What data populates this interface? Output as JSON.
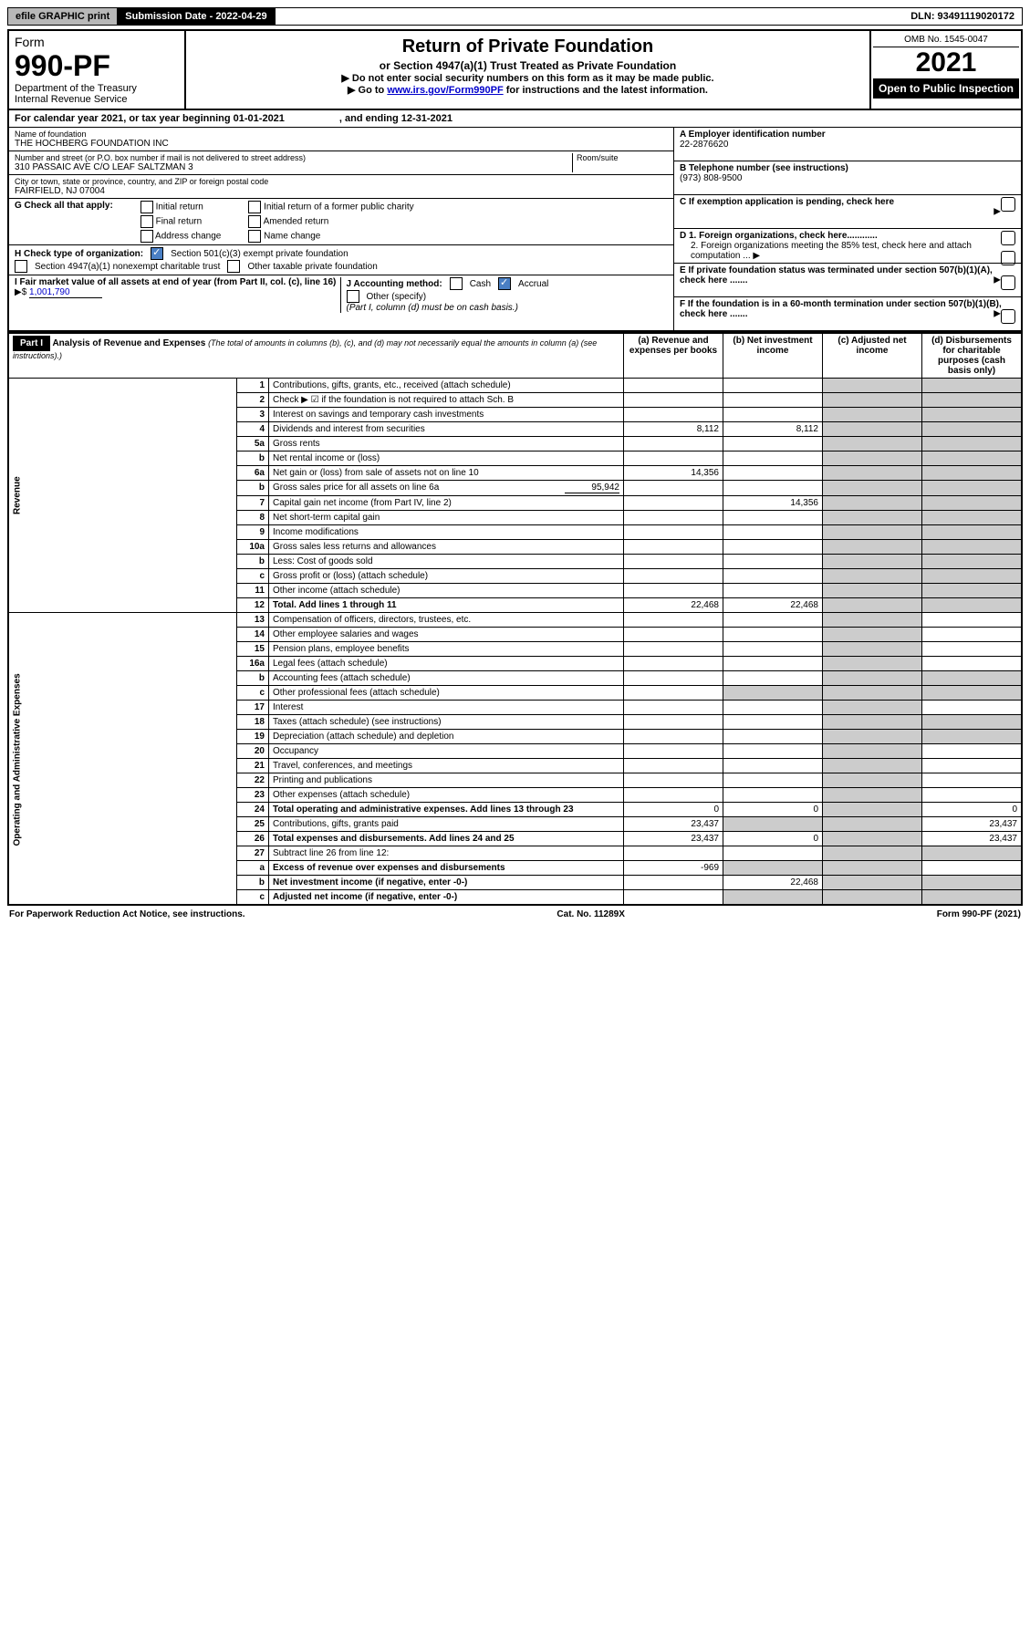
{
  "top": {
    "efile": "efile GRAPHIC print",
    "submission_label": "Submission Date - 2022-04-29",
    "dln": "DLN: 93491119020172"
  },
  "header": {
    "form_word": "Form",
    "form_no": "990-PF",
    "dept1": "Department of the Treasury",
    "dept2": "Internal Revenue Service",
    "title": "Return of Private Foundation",
    "subtitle": "or Section 4947(a)(1) Trust Treated as Private Foundation",
    "note1": "▶ Do not enter social security numbers on this form as it may be made public.",
    "note2_pre": "▶ Go to ",
    "note2_link": "www.irs.gov/Form990PF",
    "note2_post": " for instructions and the latest information.",
    "omb": "OMB No. 1545-0047",
    "year": "2021",
    "open": "Open to Public Inspection"
  },
  "cal": {
    "text1": "For calendar year 2021, or tax year beginning 01-01-2021",
    "text2": ", and ending 12-31-2021"
  },
  "foundation": {
    "name_label": "Name of foundation",
    "name": "THE HOCHBERG FOUNDATION INC",
    "addr_label": "Number and street (or P.O. box number if mail is not delivered to street address)",
    "addr": "310 PASSAIC AVE C/O LEAF SALTZMAN 3",
    "room_label": "Room/suite",
    "city_label": "City or town, state or province, country, and ZIP or foreign postal code",
    "city": "FAIRFIELD, NJ  07004"
  },
  "right": {
    "a_label": "A Employer identification number",
    "a_val": "22-2876620",
    "b_label": "B Telephone number (see instructions)",
    "b_val": "(973) 808-9500",
    "c_label": "C If exemption application is pending, check here",
    "d1": "D 1. Foreign organizations, check here............",
    "d2": "2. Foreign organizations meeting the 85% test, check here and attach computation ...",
    "e_label": "E  If private foundation status was terminated under section 507(b)(1)(A), check here .......",
    "f_label": "F  If the foundation is in a 60-month termination under section 507(b)(1)(B), check here .......",
    "arrow": "▶"
  },
  "g": {
    "label": "G Check all that apply:",
    "o1": "Initial return",
    "o2": "Final return",
    "o3": "Address change",
    "o4": "Initial return of a former public charity",
    "o5": "Amended return",
    "o6": "Name change"
  },
  "h": {
    "label": "H Check type of organization:",
    "o1": "Section 501(c)(3) exempt private foundation",
    "o2": "Section 4947(a)(1) nonexempt charitable trust",
    "o3": "Other taxable private foundation"
  },
  "i": {
    "label": "I Fair market value of all assets at end of year (from Part II, col. (c), line 16)",
    "arrow": "▶$",
    "val": "1,001,790"
  },
  "j": {
    "label": "J Accounting method:",
    "cash": "Cash",
    "accrual": "Accrual",
    "other": "Other (specify)",
    "note": "(Part I, column (d) must be on cash basis.)"
  },
  "part1": {
    "label": "Part I",
    "title": "Analysis of Revenue and Expenses",
    "title_note": " (The total of amounts in columns (b), (c), and (d) may not necessarily equal the amounts in column (a) (see instructions).)",
    "col_a": "(a)  Revenue and expenses per books",
    "col_b": "(b)  Net investment income",
    "col_c": "(c)  Adjusted net income",
    "col_d": "(d)  Disbursements for charitable purposes (cash basis only)"
  },
  "sections": {
    "revenue": "Revenue",
    "opex": "Operating and Administrative Expenses"
  },
  "lines": [
    {
      "n": "1",
      "d": "Contributions, gifts, grants, etc., received (attach schedule)"
    },
    {
      "n": "2",
      "d": "Check ▶ ☑ if the foundation is not required to attach Sch. B"
    },
    {
      "n": "3",
      "d": "Interest on savings and temporary cash investments"
    },
    {
      "n": "4",
      "d": "Dividends and interest from securities",
      "a": "8,112",
      "b": "8,112"
    },
    {
      "n": "5a",
      "d": "Gross rents"
    },
    {
      "n": "b",
      "d": "Net rental income or (loss)"
    },
    {
      "n": "6a",
      "d": "Net gain or (loss) from sale of assets not on line 10",
      "a": "14,356"
    },
    {
      "n": "b",
      "d": "Gross sales price for all assets on line 6a",
      "inline": "95,942"
    },
    {
      "n": "7",
      "d": "Capital gain net income (from Part IV, line 2)",
      "b": "14,356"
    },
    {
      "n": "8",
      "d": "Net short-term capital gain"
    },
    {
      "n": "9",
      "d": "Income modifications"
    },
    {
      "n": "10a",
      "d": "Gross sales less returns and allowances"
    },
    {
      "n": "b",
      "d": "Less: Cost of goods sold"
    },
    {
      "n": "c",
      "d": "Gross profit or (loss) (attach schedule)"
    },
    {
      "n": "11",
      "d": "Other income (attach schedule)"
    },
    {
      "n": "12",
      "d": "Total. Add lines 1 through 11",
      "a": "22,468",
      "b": "22,468",
      "bold": true
    }
  ],
  "oplines": [
    {
      "n": "13",
      "d": "Compensation of officers, directors, trustees, etc."
    },
    {
      "n": "14",
      "d": "Other employee salaries and wages"
    },
    {
      "n": "15",
      "d": "Pension plans, employee benefits"
    },
    {
      "n": "16a",
      "d": "Legal fees (attach schedule)"
    },
    {
      "n": "b",
      "d": "Accounting fees (attach schedule)"
    },
    {
      "n": "c",
      "d": "Other professional fees (attach schedule)"
    },
    {
      "n": "17",
      "d": "Interest"
    },
    {
      "n": "18",
      "d": "Taxes (attach schedule) (see instructions)"
    },
    {
      "n": "19",
      "d": "Depreciation (attach schedule) and depletion"
    },
    {
      "n": "20",
      "d": "Occupancy"
    },
    {
      "n": "21",
      "d": "Travel, conferences, and meetings"
    },
    {
      "n": "22",
      "d": "Printing and publications"
    },
    {
      "n": "23",
      "d": "Other expenses (attach schedule)"
    },
    {
      "n": "24",
      "d": "Total operating and administrative expenses. Add lines 13 through 23",
      "a": "0",
      "b": "0",
      "dd": "0",
      "bold": true
    },
    {
      "n": "25",
      "d": "Contributions, gifts, grants paid",
      "a": "23,437",
      "dd": "23,437"
    },
    {
      "n": "26",
      "d": "Total expenses and disbursements. Add lines 24 and 25",
      "a": "23,437",
      "b": "0",
      "dd": "23,437",
      "bold": true
    },
    {
      "n": "27",
      "d": "Subtract line 26 from line 12:"
    },
    {
      "n": "a",
      "d": "Excess of revenue over expenses and disbursements",
      "a": "-969",
      "bold": true
    },
    {
      "n": "b",
      "d": "Net investment income (if negative, enter -0-)",
      "b": "22,468",
      "bold": true
    },
    {
      "n": "c",
      "d": "Adjusted net income (if negative, enter -0-)",
      "bold": true
    }
  ],
  "footer": {
    "left": "For Paperwork Reduction Act Notice, see instructions.",
    "mid": "Cat. No. 11289X",
    "right": "Form 990-PF (2021)"
  },
  "colors": {
    "link": "#0000cc",
    "checkbox_checked": "#4a7fc4",
    "grey_cell": "#cccccc"
  }
}
